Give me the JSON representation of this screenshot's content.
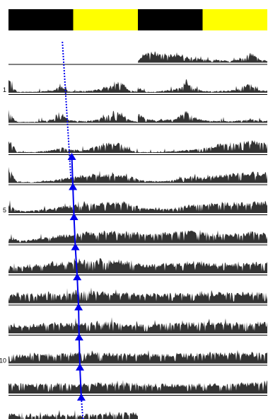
{
  "chart_data": {
    "type": "area",
    "title": "",
    "xlabel": "",
    "ylabel": "",
    "light_bar": {
      "segments": [
        {
          "state": "dark",
          "start_hour": 0,
          "end_hour": 12
        },
        {
          "state": "light",
          "start_hour": 12,
          "end_hour": 24
        },
        {
          "state": "dark",
          "start_hour": 24,
          "end_hour": 36
        },
        {
          "state": "light",
          "start_hour": 36,
          "end_hour": 48
        }
      ]
    },
    "x_range_hours": [
      0,
      48
    ],
    "day_tick_labels": [
      {
        "day": 1,
        "label": "1"
      },
      {
        "day": 5,
        "label": "5"
      },
      {
        "day": 10,
        "label": "10"
      }
    ],
    "row_count": 13,
    "rows": [
      {
        "day": 0,
        "first_half": [],
        "second_half": [
          0.15,
          0.5,
          0.55,
          0.5,
          0.45,
          0.4,
          0.3,
          0.25,
          0.2,
          0.15,
          0.15,
          0.1,
          0.15,
          0.25,
          0.5,
          0.2,
          0.1
        ]
      },
      {
        "day": 1,
        "first_half": [
          0.7,
          0.05,
          0.05,
          0.05,
          0.1,
          0.1,
          0.35,
          0.1,
          0.08,
          0.1,
          0.15,
          0.25,
          0.4,
          0.6,
          0.15,
          0.05
        ],
        "second_half": [
          0.3,
          0.05,
          0.05,
          0.1,
          0.15,
          0.25,
          0.7,
          0.25,
          0.1,
          0.08,
          0.1,
          0.1,
          0.15,
          0.35,
          0.45,
          0.15,
          0.1
        ]
      },
      {
        "day": 2,
        "first_half": [
          0.7,
          0.05,
          0.05,
          0.05,
          0.1,
          0.15,
          0.6,
          0.15,
          0.1,
          0.1,
          0.15,
          0.3,
          0.45,
          0.55,
          0.15,
          0.05
        ],
        "second_half": [
          0.5,
          0.2,
          0.15,
          0.15,
          0.2,
          0.3,
          0.65,
          0.3,
          0.15,
          0.1,
          0.1,
          0.1,
          0.1,
          0.15,
          0.2,
          0.15,
          0.1
        ]
      },
      {
        "day": 3,
        "first_half": [
          0.8,
          0.05,
          0.05,
          0.05,
          0.1,
          0.15,
          0.3,
          0.2,
          0.15,
          0.15,
          0.3,
          0.45,
          0.55,
          0.5,
          0.15,
          0.05
        ],
        "second_half": [
          0.05,
          0.05,
          0.05,
          0.05,
          0.1,
          0.1,
          0.15,
          0.2,
          0.25,
          0.35,
          0.45,
          0.5,
          0.55,
          0.55,
          0.6,
          0.6,
          0.6
        ]
      },
      {
        "day": 4,
        "first_half": [
          0.8,
          0.05,
          0.05,
          0.05,
          0.1,
          0.15,
          0.2,
          0.3,
          0.35,
          0.4,
          0.45,
          0.45,
          0.45,
          0.4,
          0.35,
          0.25
        ],
        "second_half": [
          0.2,
          0.1,
          0.1,
          0.1,
          0.15,
          0.2,
          0.3,
          0.35,
          0.3,
          0.35,
          0.4,
          0.45,
          0.5,
          0.5,
          0.55,
          0.55,
          0.55
        ]
      },
      {
        "day": 5,
        "first_half": [
          0.5,
          0.15,
          0.1,
          0.15,
          0.2,
          0.25,
          0.3,
          0.4,
          0.45,
          0.5,
          0.5,
          0.55,
          0.55,
          0.55,
          0.5,
          0.45
        ],
        "second_half": [
          0.35,
          0.25,
          0.2,
          0.2,
          0.25,
          0.3,
          0.4,
          0.45,
          0.45,
          0.5,
          0.55,
          0.55,
          0.55,
          0.55,
          0.55,
          0.6,
          0.6
        ]
      },
      {
        "day": 6,
        "first_half": [
          0.3,
          0.15,
          0.15,
          0.2,
          0.3,
          0.35,
          0.4,
          0.45,
          0.5,
          0.55,
          0.55,
          0.6,
          0.6,
          0.6,
          0.6,
          0.55
        ],
        "second_half": [
          0.5,
          0.45,
          0.45,
          0.5,
          0.55,
          0.6,
          0.6,
          0.6,
          0.55,
          0.5,
          0.45,
          0.45,
          0.5,
          0.55,
          0.55,
          0.55,
          0.55
        ]
      },
      {
        "day": 7,
        "first_half": [
          0.4,
          0.35,
          0.35,
          0.4,
          0.45,
          0.5,
          0.55,
          0.6,
          0.6,
          0.65,
          0.65,
          0.7,
          0.7,
          0.65,
          0.6,
          0.55
        ],
        "second_half": [
          0.5,
          0.45,
          0.45,
          0.45,
          0.5,
          0.5,
          0.55,
          0.55,
          0.55,
          0.5,
          0.5,
          0.5,
          0.5,
          0.55,
          0.55,
          0.55,
          0.55
        ]
      },
      {
        "day": 8,
        "first_half": [
          0.5,
          0.5,
          0.5,
          0.5,
          0.5,
          0.55,
          0.55,
          0.6,
          0.6,
          0.6,
          0.6,
          0.6,
          0.55,
          0.55,
          0.55,
          0.5
        ],
        "second_half": [
          0.5,
          0.5,
          0.5,
          0.5,
          0.5,
          0.5,
          0.5,
          0.55,
          0.55,
          0.55,
          0.55,
          0.55,
          0.55,
          0.55,
          0.55,
          0.55,
          0.55
        ]
      },
      {
        "day": 9,
        "first_half": [
          0.45,
          0.45,
          0.45,
          0.45,
          0.5,
          0.5,
          0.5,
          0.55,
          0.55,
          0.55,
          0.6,
          0.6,
          0.6,
          0.55,
          0.55,
          0.5
        ],
        "second_half": [
          0.45,
          0.45,
          0.45,
          0.5,
          0.5,
          0.5,
          0.55,
          0.55,
          0.55,
          0.55,
          0.55,
          0.55,
          0.55,
          0.55,
          0.55,
          0.55,
          0.55
        ]
      },
      {
        "day": 10,
        "first_half": [
          0.45,
          0.45,
          0.45,
          0.5,
          0.5,
          0.5,
          0.5,
          0.5,
          0.55,
          0.55,
          0.55,
          0.55,
          0.55,
          0.55,
          0.5,
          0.5
        ],
        "second_half": [
          0.5,
          0.5,
          0.5,
          0.5,
          0.5,
          0.5,
          0.5,
          0.5,
          0.55,
          0.55,
          0.55,
          0.55,
          0.55,
          0.55,
          0.55,
          0.55,
          0.55
        ]
      },
      {
        "day": 11,
        "first_half": [
          0.5,
          0.5,
          0.5,
          0.5,
          0.5,
          0.5,
          0.5,
          0.5,
          0.5,
          0.5,
          0.55,
          0.55,
          0.55,
          0.55,
          0.55,
          0.55
        ],
        "second_half": [
          0.5,
          0.5,
          0.5,
          0.5,
          0.5,
          0.5,
          0.5,
          0.5,
          0.5,
          0.5,
          0.5,
          0.5,
          0.5,
          0.55,
          0.55,
          0.55,
          0.55
        ]
      },
      {
        "day": 12,
        "first_half": [
          0.5,
          0.5,
          0.5,
          0.5,
          0.5,
          0.5,
          0.5,
          0.5,
          0.5,
          0.5,
          0.5,
          0.55,
          0.55,
          0.55,
          0.55,
          0.55
        ],
        "second_half": []
      }
    ],
    "onset_line": {
      "color": "#0000ee",
      "marker": "triangle-up",
      "fit_dashed_hours": [
        {
          "day": -0.6,
          "hour": 10.0
        },
        {
          "day": 4.0,
          "hour": 11.6
        }
      ],
      "onsets": [
        {
          "day": 5,
          "hour": 11.75
        },
        {
          "day": 6,
          "hour": 11.95
        },
        {
          "day": 7,
          "hour": 12.15
        },
        {
          "day": 8,
          "hour": 12.4
        },
        {
          "day": 9,
          "hour": 12.75
        },
        {
          "day": 10,
          "hour": 13.0
        },
        {
          "day": 11,
          "hour": 13.1
        },
        {
          "day": 12,
          "hour": 13.25
        },
        {
          "day": 13,
          "hour": 13.5
        }
      ],
      "extension_dashed": [
        {
          "day": 13,
          "hour": 13.5
        },
        {
          "day": 13.9,
          "hour": 13.8
        }
      ]
    },
    "colors": {
      "dark": "#000000",
      "light": "#ffff00",
      "activity": "#333333",
      "divider": "#000000",
      "onset": "#0000ee"
    }
  }
}
